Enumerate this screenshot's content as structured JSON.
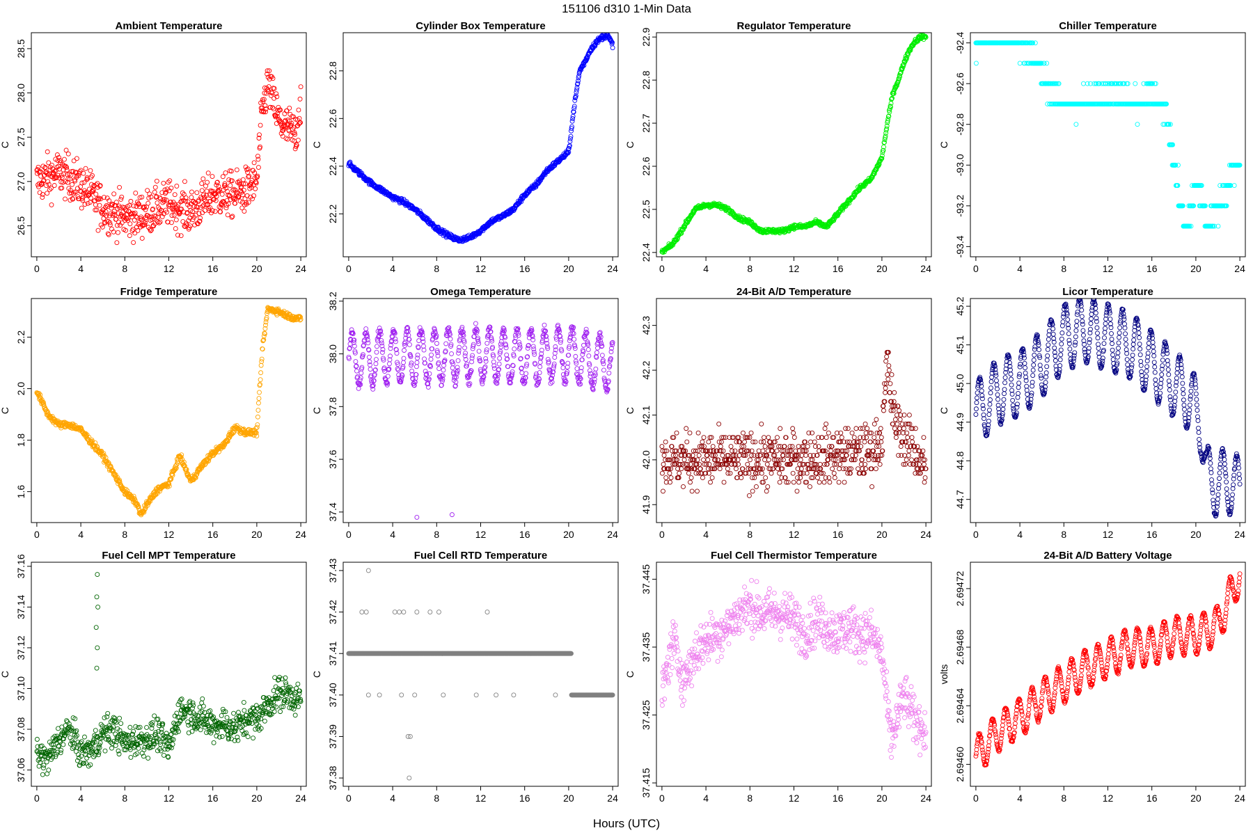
{
  "figure": {
    "title": "151106   d310   1-Min Data",
    "xlabel": "Hours (UTC)"
  },
  "chart_data": [
    {
      "type": "scatter",
      "title": "Ambient Temperature",
      "ylabel": "C",
      "color": "#ff0000",
      "xlim": [
        -0.5,
        24.5
      ],
      "xticks": [
        0,
        4,
        8,
        12,
        16,
        20,
        24
      ],
      "ylim": [
        26.15,
        28.68
      ],
      "yticks": [
        26.5,
        27.0,
        27.5,
        28.0,
        28.5
      ],
      "ytick_labels": [
        "26.5",
        "27.0",
        "27.5",
        "28.0",
        "28.5"
      ],
      "x": [
        0,
        1,
        2,
        3,
        4,
        5,
        6,
        7,
        8,
        9,
        10,
        11,
        12,
        13,
        14,
        15,
        16,
        17,
        18,
        19,
        20,
        20.5,
        21,
        21.5,
        22,
        22.5,
        23,
        23.5,
        24
      ],
      "y": [
        27.0,
        27.05,
        27.1,
        27.05,
        26.95,
        26.85,
        26.7,
        26.65,
        26.6,
        26.6,
        26.65,
        26.7,
        26.75,
        26.7,
        26.65,
        26.75,
        26.85,
        26.85,
        26.85,
        26.9,
        27.0,
        27.8,
        28.1,
        27.9,
        27.7,
        27.6,
        27.6,
        27.5,
        27.9
      ],
      "noise": 0.25,
      "spikes": [],
      "density": 1
    },
    {
      "type": "scatter",
      "title": "Cylinder Box Temperature",
      "ylabel": "C",
      "color": "#0000ff",
      "xlim": [
        -0.5,
        24.5
      ],
      "xticks": [
        0,
        4,
        8,
        12,
        16,
        20,
        24
      ],
      "ylim": [
        22.02,
        22.96
      ],
      "yticks": [
        22.2,
        22.4,
        22.6,
        22.8
      ],
      "ytick_labels": [
        "22.2",
        "22.4",
        "22.6",
        "22.8"
      ],
      "x": [
        0,
        1,
        2,
        3,
        4,
        5,
        6,
        7,
        8,
        9,
        10,
        11,
        12,
        13,
        14,
        15,
        16,
        17,
        18,
        19,
        20,
        20.5,
        21,
        21.5,
        22,
        22.5,
        23,
        23.5,
        24
      ],
      "y": [
        22.41,
        22.37,
        22.33,
        22.3,
        22.27,
        22.25,
        22.22,
        22.18,
        22.14,
        22.11,
        22.09,
        22.1,
        22.13,
        22.17,
        22.19,
        22.22,
        22.28,
        22.32,
        22.38,
        22.42,
        22.46,
        22.65,
        22.8,
        22.84,
        22.89,
        22.92,
        22.94,
        22.95,
        22.91
      ],
      "noise": 0.01,
      "spikes": [],
      "density": 1
    },
    {
      "type": "scatter",
      "title": "Regulator Temperature",
      "ylabel": "C",
      "color": "#00ee00",
      "xlim": [
        -0.5,
        24.5
      ],
      "xticks": [
        0,
        4,
        8,
        12,
        16,
        20,
        24
      ],
      "ylim": [
        22.39,
        22.91
      ],
      "yticks": [
        22.4,
        22.5,
        22.6,
        22.7,
        22.8,
        22.9
      ],
      "ytick_labels": [
        "22.4",
        "22.5",
        "22.6",
        "22.7",
        "22.8",
        "22.9"
      ],
      "x": [
        0,
        1,
        2,
        3,
        4,
        5,
        6,
        7,
        8,
        9,
        10,
        11,
        12,
        13,
        14,
        15,
        16,
        17,
        18,
        19,
        20,
        20.5,
        21,
        21.5,
        22,
        22.5,
        23,
        23.5,
        24
      ],
      "y": [
        22.4,
        22.42,
        22.46,
        22.5,
        22.51,
        22.51,
        22.5,
        22.48,
        22.47,
        22.45,
        22.45,
        22.45,
        22.46,
        22.46,
        22.47,
        22.46,
        22.49,
        22.52,
        22.55,
        22.57,
        22.62,
        22.7,
        22.77,
        22.8,
        22.84,
        22.87,
        22.89,
        22.9,
        22.9
      ],
      "noise": 0.005,
      "spikes": [],
      "density": 1
    },
    {
      "type": "scatter",
      "title": "Chiller Temperature",
      "ylabel": "C",
      "color": "#00ffff",
      "xlim": [
        -0.5,
        24.5
      ],
      "xticks": [
        0,
        4,
        8,
        12,
        16,
        20,
        24
      ],
      "ylim": [
        -93.45,
        -92.35
      ],
      "yticks": [
        -93.4,
        -93.2,
        -93.0,
        -92.8,
        -92.6,
        -92.4
      ],
      "ytick_labels": [
        "-93.4",
        "-93.2",
        "-93.0",
        "-92.8",
        "-92.6",
        "-92.4"
      ],
      "x": [
        0,
        1,
        2,
        3,
        4,
        5,
        5.5,
        6,
        7,
        8,
        9,
        10,
        11,
        12,
        13,
        14,
        15,
        16,
        17,
        17.5,
        18,
        18.5,
        19,
        19.5,
        20,
        20.5,
        21,
        22,
        23,
        23.5,
        24
      ],
      "y": [
        -92.4,
        -92.4,
        -92.4,
        -92.4,
        -92.4,
        -92.45,
        -92.5,
        -92.55,
        -92.65,
        -92.7,
        -92.7,
        -92.7,
        -92.65,
        -92.65,
        -92.65,
        -92.7,
        -92.7,
        -92.65,
        -92.7,
        -92.8,
        -93.0,
        -93.15,
        -93.3,
        -93.25,
        -93.1,
        -93.15,
        -93.3,
        -93.2,
        -93.1,
        -93.0,
        -93.0
      ],
      "noise": 0.06,
      "step": 0.1,
      "spikes": [],
      "density": 1
    },
    {
      "type": "scatter",
      "title": "Fridge Temperature",
      "ylabel": "C",
      "color": "#ffa500",
      "xlim": [
        -0.5,
        24.5
      ],
      "xticks": [
        0,
        4,
        8,
        12,
        16,
        20,
        24
      ],
      "ylim": [
        1.48,
        2.35
      ],
      "yticks": [
        1.6,
        1.8,
        2.0,
        2.2
      ],
      "ytick_labels": [
        "1.6",
        "1.8",
        "2.0",
        "2.2"
      ],
      "x": [
        0,
        1,
        2,
        3,
        4,
        5,
        6,
        7,
        8,
        9,
        9.5,
        10,
        11,
        12,
        13,
        14,
        15,
        16,
        17,
        18,
        19,
        20,
        20.5,
        21,
        22,
        23,
        24
      ],
      "y": [
        1.99,
        1.9,
        1.86,
        1.86,
        1.84,
        1.79,
        1.74,
        1.67,
        1.6,
        1.56,
        1.51,
        1.55,
        1.61,
        1.63,
        1.74,
        1.64,
        1.7,
        1.75,
        1.78,
        1.85,
        1.83,
        1.83,
        2.15,
        2.31,
        2.3,
        2.28,
        2.27
      ],
      "noise": 0.012,
      "spikes": [],
      "density": 1
    },
    {
      "type": "scatter",
      "title": "Omega Temperature",
      "ylabel": "C",
      "color": "#a020f0",
      "xlim": [
        -0.5,
        24.5
      ],
      "xticks": [
        0,
        4,
        8,
        12,
        16,
        20,
        24
      ],
      "ylim": [
        37.36,
        38.21
      ],
      "yticks": [
        37.4,
        37.6,
        37.8,
        38.0,
        38.2
      ],
      "ytick_labels": [
        "37.4",
        "37.6",
        "37.8",
        "38.0",
        "38.2"
      ],
      "x": [
        0,
        4,
        8,
        12,
        16,
        20,
        24
      ],
      "y": [
        37.98,
        37.99,
        37.99,
        38.0,
        37.99,
        38.0,
        37.96
      ],
      "osc_amp": 0.1,
      "osc_period": 1.25,
      "noise": 0.02,
      "spikes": [
        {
          "x": 6.2,
          "y": 37.38
        },
        {
          "x": 9.4,
          "y": 37.39
        }
      ],
      "density": 1
    },
    {
      "type": "scatter",
      "title": "24-Bit A/D Temperature",
      "ylabel": "C",
      "color": "#8b0000",
      "xlim": [
        -0.5,
        24.5
      ],
      "xticks": [
        0,
        4,
        8,
        12,
        16,
        20,
        24
      ],
      "ylim": [
        41.86,
        42.36
      ],
      "yticks": [
        41.9,
        42.0,
        42.1,
        42.2,
        42.3
      ],
      "ytick_labels": [
        "41.9",
        "42.0",
        "42.1",
        "42.2",
        "42.3"
      ],
      "x": [
        0,
        4,
        8,
        12,
        16,
        19,
        20,
        20.5,
        21,
        22,
        23,
        24
      ],
      "y": [
        42.0,
        42.0,
        42.0,
        42.0,
        42.01,
        42.02,
        42.05,
        42.22,
        42.1,
        42.05,
        42.02,
        41.98
      ],
      "noise": 0.06,
      "step": 0.01,
      "spikes": [],
      "density": 1
    },
    {
      "type": "scatter",
      "title": "Licor Temperature",
      "ylabel": "C",
      "color": "#000080",
      "xlim": [
        -0.5,
        24.5
      ],
      "xticks": [
        0,
        4,
        8,
        12,
        16,
        20,
        24
      ],
      "ylim": [
        44.64,
        45.22
      ],
      "yticks": [
        44.7,
        44.8,
        44.9,
        45.0,
        45.1,
        45.2
      ],
      "ytick_labels": [
        "44.7",
        "44.8",
        "44.9",
        "45.0",
        "45.1",
        "45.2"
      ],
      "x": [
        0,
        2,
        4,
        6,
        8,
        10,
        12,
        14,
        16,
        18,
        19.5,
        20.5,
        21,
        22,
        23,
        24
      ],
      "y": [
        44.92,
        44.98,
        45.0,
        45.05,
        45.12,
        45.14,
        45.12,
        45.1,
        45.05,
        45.0,
        44.96,
        44.9,
        44.75,
        44.74,
        44.75,
        44.72
      ],
      "osc_amp": 0.085,
      "osc_period": 1.3,
      "noise": 0.004,
      "spikes": [],
      "density": 1
    },
    {
      "type": "scatter",
      "title": "Fuel Cell MPT Temperature",
      "ylabel": "C",
      "color": "#006400",
      "xlim": [
        -0.5,
        24.5
      ],
      "xticks": [
        0,
        4,
        8,
        12,
        16,
        20,
        24
      ],
      "ylim": [
        37.052,
        37.162
      ],
      "yticks": [
        37.06,
        37.08,
        37.1,
        37.12,
        37.14,
        37.16
      ],
      "ytick_labels": [
        "37.06",
        "37.08",
        "37.10",
        "37.12",
        "37.14",
        "37.16"
      ],
      "x": [
        0,
        1,
        2,
        3,
        4,
        5,
        6,
        7,
        8,
        9,
        10,
        11,
        12,
        13,
        14,
        15,
        16,
        17,
        18,
        19,
        20,
        21,
        22,
        23,
        24
      ],
      "y": [
        37.068,
        37.065,
        37.075,
        37.08,
        37.068,
        37.07,
        37.078,
        37.08,
        37.073,
        37.075,
        37.075,
        37.078,
        37.07,
        37.09,
        37.088,
        37.085,
        37.082,
        37.083,
        37.08,
        37.085,
        37.085,
        37.092,
        37.098,
        37.097,
        37.094
      ],
      "noise": 0.008,
      "spikes": [
        {
          "x": 5.5,
          "y": 37.156
        },
        {
          "x": 5.45,
          "y": 37.145
        },
        {
          "x": 5.55,
          "y": 37.14
        },
        {
          "x": 5.4,
          "y": 37.13
        },
        {
          "x": 5.5,
          "y": 37.12
        },
        {
          "x": 5.45,
          "y": 37.11
        }
      ],
      "density": 1
    },
    {
      "type": "scatter",
      "title": "Fuel Cell RTD Temperature",
      "ylabel": "C",
      "color": "#808080",
      "xlim": [
        -0.5,
        24.5
      ],
      "xticks": [
        0,
        4,
        8,
        12,
        16,
        20,
        24
      ],
      "ylim": [
        37.378,
        37.432
      ],
      "yticks": [
        37.38,
        37.39,
        37.4,
        37.41,
        37.42,
        37.43
      ],
      "ytick_labels": [
        "37.38",
        "37.39",
        "37.40",
        "37.41",
        "37.42",
        "37.43"
      ],
      "x": [
        0,
        20,
        20.5,
        24
      ],
      "y": [
        37.41,
        37.41,
        37.4,
        37.4
      ],
      "noise": 0.0,
      "step": 0.01,
      "spikes": [
        {
          "x": 1.8,
          "y": 37.43
        },
        {
          "x": 1.2,
          "y": 37.42
        },
        {
          "x": 1.6,
          "y": 37.42
        },
        {
          "x": 4.2,
          "y": 37.42
        },
        {
          "x": 4.6,
          "y": 37.42
        },
        {
          "x": 5.0,
          "y": 37.42
        },
        {
          "x": 6.2,
          "y": 37.42
        },
        {
          "x": 7.4,
          "y": 37.42
        },
        {
          "x": 8.2,
          "y": 37.42
        },
        {
          "x": 12.6,
          "y": 37.42
        },
        {
          "x": 1.8,
          "y": 37.4
        },
        {
          "x": 2.8,
          "y": 37.4
        },
        {
          "x": 4.8,
          "y": 37.4
        },
        {
          "x": 6.0,
          "y": 37.4
        },
        {
          "x": 8.6,
          "y": 37.4
        },
        {
          "x": 11.6,
          "y": 37.4
        },
        {
          "x": 13.4,
          "y": 37.4
        },
        {
          "x": 15.0,
          "y": 37.4
        },
        {
          "x": 18.8,
          "y": 37.4
        },
        {
          "x": 5.4,
          "y": 37.39
        },
        {
          "x": 5.6,
          "y": 37.39
        },
        {
          "x": 5.5,
          "y": 37.38
        }
      ],
      "density": 1
    },
    {
      "type": "scatter",
      "title": "Fuel Cell Thermistor Temperature",
      "ylabel": "C",
      "color": "#ee82ee",
      "xlim": [
        -0.5,
        24.5
      ],
      "xticks": [
        0,
        4,
        8,
        12,
        16,
        20,
        24
      ],
      "ylim": [
        37.4145,
        37.4475
      ],
      "yticks": [
        37.415,
        37.425,
        37.435,
        37.445
      ],
      "ytick_labels": [
        "37.415",
        "37.425",
        "37.435",
        "37.445"
      ],
      "x": [
        0,
        1,
        2,
        3,
        4,
        5,
        6,
        7,
        8,
        9,
        10,
        11,
        12,
        13,
        14,
        15,
        16,
        17,
        18,
        19,
        20,
        20.8,
        21.5,
        22,
        23,
        24
      ],
      "y": [
        37.428,
        37.436,
        37.43,
        37.434,
        37.436,
        37.437,
        37.438,
        37.44,
        37.441,
        37.44,
        37.44,
        37.44,
        37.439,
        37.437,
        37.439,
        37.438,
        37.437,
        37.438,
        37.437,
        37.437,
        37.434,
        37.421,
        37.425,
        37.428,
        37.424,
        37.423
      ],
      "noise": 0.0035,
      "spikes": [],
      "density": 1
    },
    {
      "type": "scatter",
      "title": "24-Bit A/D Battery Voltage",
      "ylabel": "volts",
      "color": "#ff0000",
      "xlim": [
        -0.5,
        24.5
      ],
      "xticks": [
        0,
        4,
        8,
        12,
        16,
        20,
        24
      ],
      "ylim": [
        2.694585,
        2.694738
      ],
      "yticks": [
        2.6946,
        2.69464,
        2.69468,
        2.69472
      ],
      "ytick_labels": [
        "2.69460",
        "2.69464",
        "2.69468",
        "2.69472"
      ],
      "x": [
        0,
        2,
        4,
        6,
        8,
        10,
        12,
        14,
        16,
        18,
        20,
        22,
        24
      ],
      "y": [
        2.694605,
        2.694622,
        2.694632,
        2.694645,
        2.694655,
        2.694665,
        2.694672,
        2.69468,
        2.69468,
        2.694688,
        2.694688,
        2.694695,
        2.69473
      ],
      "osc_amp": 1.3e-05,
      "osc_period": 1.2,
      "noise": 1.2e-06,
      "spikes": [],
      "density": 1
    }
  ]
}
